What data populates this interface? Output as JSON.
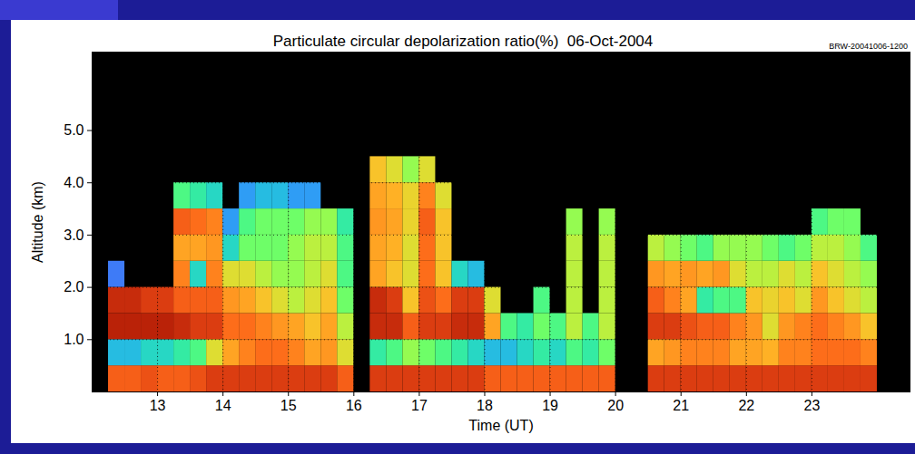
{
  "chart_data": {
    "type": "heatmap",
    "title": "Particulate circular depolarization ratio(%)  06-Oct-2004",
    "subtitle": "BRW-20041006-1200",
    "x_label": "Time (UT)",
    "y_label": "Altitude (km)",
    "xlim": [
      12,
      24.5
    ],
    "xticks": [
      13,
      14,
      15,
      16,
      17,
      18,
      19,
      20,
      21,
      22,
      23
    ],
    "ylim": [
      0,
      6.5
    ],
    "yticks": [
      {
        "value": 1,
        "label": "1.0"
      },
      {
        "value": 2,
        "label": "2.0"
      },
      {
        "value": 3,
        "label": "3.0"
      },
      {
        "value": 4,
        "label": "4.0"
      },
      {
        "value": 5,
        "label": "5.0"
      }
    ],
    "grid": true,
    "zlim": [
      0,
      100
    ],
    "x_edges": [
      12.25,
      12.5,
      12.75,
      13,
      13.25,
      13.5,
      13.75,
      14,
      14.25,
      14.5,
      14.75,
      15,
      15.25,
      15.5,
      15.75,
      16,
      16.25,
      16.5,
      16.75,
      17,
      17.25,
      17.5,
      17.75,
      18,
      18.25,
      18.5,
      18.75,
      19,
      19.25,
      19.5,
      19.75,
      20,
      20.25,
      20.5,
      20.75,
      21,
      21.25,
      21.5,
      21.75,
      22,
      22.25,
      22.5,
      22.75,
      23,
      23.25,
      23.5,
      23.75,
      24
    ],
    "y_edges": [
      0,
      0.5,
      1,
      1.5,
      2,
      2.5,
      3,
      3.5,
      4,
      4.5
    ],
    "values": [
      [
        80,
        25,
        90,
        88,
        15,
        null,
        null,
        null,
        null
      ],
      [
        80,
        25,
        90,
        88,
        null,
        null,
        null,
        null,
        null
      ],
      [
        82,
        30,
        90,
        85,
        null,
        null,
        null,
        null,
        null
      ],
      [
        80,
        30,
        90,
        85,
        null,
        null,
        null,
        null,
        null
      ],
      [
        80,
        35,
        88,
        80,
        75,
        70,
        80,
        40,
        null
      ],
      [
        82,
        40,
        85,
        80,
        30,
        70,
        78,
        35,
        null
      ],
      [
        85,
        60,
        85,
        80,
        75,
        72,
        75,
        30,
        null
      ],
      [
        85,
        70,
        78,
        72,
        60,
        30,
        20,
        null,
        null
      ],
      [
        85,
        75,
        78,
        70,
        60,
        45,
        40,
        20,
        null
      ],
      [
        85,
        78,
        75,
        65,
        55,
        45,
        45,
        25,
        null
      ],
      [
        85,
        78,
        72,
        60,
        50,
        45,
        45,
        25,
        null
      ],
      [
        85,
        75,
        70,
        55,
        50,
        50,
        45,
        20,
        null
      ],
      [
        85,
        70,
        65,
        60,
        55,
        55,
        50,
        20,
        null
      ],
      [
        85,
        72,
        70,
        65,
        60,
        55,
        50,
        null,
        null
      ],
      [
        80,
        60,
        55,
        45,
        40,
        40,
        35,
        null,
        null
      ],
      [
        null,
        null,
        null,
        null,
        null,
        null,
        null,
        null,
        null
      ],
      [
        85,
        35,
        88,
        88,
        70,
        70,
        72,
        70,
        65
      ],
      [
        85,
        40,
        88,
        85,
        65,
        68,
        70,
        68,
        60
      ],
      [
        85,
        50,
        80,
        65,
        60,
        60,
        62,
        62,
        50
      ],
      [
        85,
        45,
        85,
        82,
        78,
        78,
        80,
        75,
        60
      ],
      [
        85,
        40,
        85,
        78,
        65,
        65,
        65,
        60,
        null
      ],
      [
        85,
        35,
        88,
        85,
        30,
        null,
        null,
        null,
        null
      ],
      [
        85,
        30,
        88,
        85,
        25,
        null,
        null,
        null,
        null
      ],
      [
        80,
        25,
        70,
        60,
        null,
        null,
        null,
        null,
        null
      ],
      [
        80,
        25,
        40,
        null,
        null,
        null,
        null,
        null,
        null
      ],
      [
        80,
        30,
        35,
        null,
        null,
        null,
        null,
        null,
        null
      ],
      [
        80,
        35,
        45,
        40,
        null,
        null,
        null,
        null,
        null
      ],
      [
        80,
        30,
        40,
        null,
        null,
        null,
        null,
        null,
        null
      ],
      [
        80,
        40,
        55,
        55,
        55,
        55,
        50,
        null,
        null
      ],
      [
        80,
        35,
        40,
        null,
        null,
        null,
        null,
        null,
        null
      ],
      [
        80,
        45,
        55,
        55,
        55,
        55,
        50,
        null,
        null
      ],
      [
        null,
        null,
        null,
        null,
        null,
        null,
        null,
        null,
        null
      ],
      [
        null,
        null,
        null,
        null,
        null,
        null,
        null,
        null,
        null
      ],
      [
        85,
        70,
        85,
        80,
        72,
        55,
        null,
        null,
        null
      ],
      [
        85,
        72,
        85,
        75,
        70,
        50,
        null,
        null,
        null
      ],
      [
        85,
        75,
        82,
        70,
        72,
        45,
        null,
        null,
        null
      ],
      [
        85,
        75,
        80,
        35,
        70,
        40,
        null,
        null,
        null
      ],
      [
        85,
        75,
        80,
        40,
        72,
        50,
        null,
        null,
        null
      ],
      [
        85,
        70,
        75,
        40,
        60,
        50,
        null,
        null,
        null
      ],
      [
        85,
        70,
        72,
        65,
        55,
        50,
        null,
        null,
        null
      ],
      [
        85,
        68,
        60,
        62,
        55,
        45,
        null,
        null,
        null
      ],
      [
        85,
        75,
        72,
        65,
        60,
        40,
        null,
        null,
        null
      ],
      [
        85,
        75,
        75,
        60,
        55,
        45,
        null,
        null,
        null
      ],
      [
        85,
        78,
        78,
        72,
        65,
        55,
        40,
        null,
        null
      ],
      [
        85,
        78,
        75,
        65,
        60,
        55,
        45,
        null,
        null
      ],
      [
        85,
        78,
        72,
        60,
        55,
        50,
        45,
        null,
        null
      ],
      [
        85,
        75,
        65,
        55,
        50,
        40,
        null,
        null,
        null
      ]
    ]
  }
}
